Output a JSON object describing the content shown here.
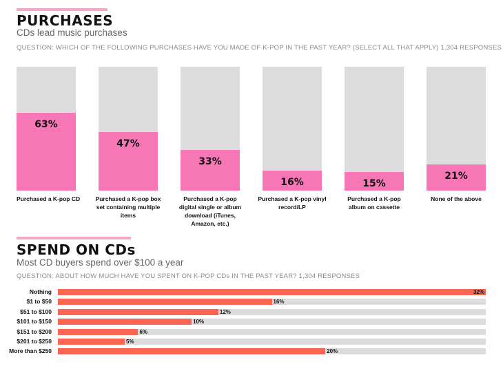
{
  "purchases": {
    "title": "PURCHASES",
    "subtitle": "CDs lead music purchases",
    "question": "QUESTION: WHICH OF THE FOLLOWING PURCHASES HAVE YOU MADE OF K-POP IN THE PAST YEAR? (SELECT ALL THAT APPLY) 1,304 RESPONSES"
  },
  "spend": {
    "title": "SPEND ON CDs",
    "subtitle": "Most CD buyers spend over $100 a year",
    "question": "QUESTION: ABOUT HOW MUCH HAVE YOU SPENT ON K-POP CDs IN THE PAST YEAR? 1,304 RESPONSES"
  },
  "colors": {
    "pink": "#f776b5",
    "coral": "#fb6554",
    "track": "#dcdcdc",
    "accent": "#f2a7c6"
  },
  "chart_data": [
    {
      "type": "bar",
      "orientation": "vertical",
      "categories": [
        "Purchased a K-pop CD",
        "Purchased a K-pop box set containing multiple items",
        "Purchased a K-pop digital single or album download (iTunes, Amazon, etc.)",
        "Purchased a K-pop vinyl record/LP",
        "Purchased a K-pop album on cassette",
        "None of the above"
      ],
      "values": [
        63,
        47,
        33,
        16,
        15,
        21
      ],
      "value_labels": [
        "63%",
        "47%",
        "33%",
        "16%",
        "15%",
        "21%"
      ],
      "ylim": [
        0,
        100
      ]
    },
    {
      "type": "bar",
      "orientation": "horizontal",
      "categories": [
        "Nothing",
        "$1 to $50",
        "$51 to $100",
        "$101 to $150",
        "$151 to $200",
        "$201 to $250",
        "More than $250"
      ],
      "values": [
        32,
        16,
        12,
        10,
        6,
        5,
        20
      ],
      "value_labels": [
        "32%",
        "16%",
        "12%",
        "10%",
        "6%",
        "5%",
        "20%"
      ],
      "xlim": [
        0,
        32
      ]
    }
  ]
}
